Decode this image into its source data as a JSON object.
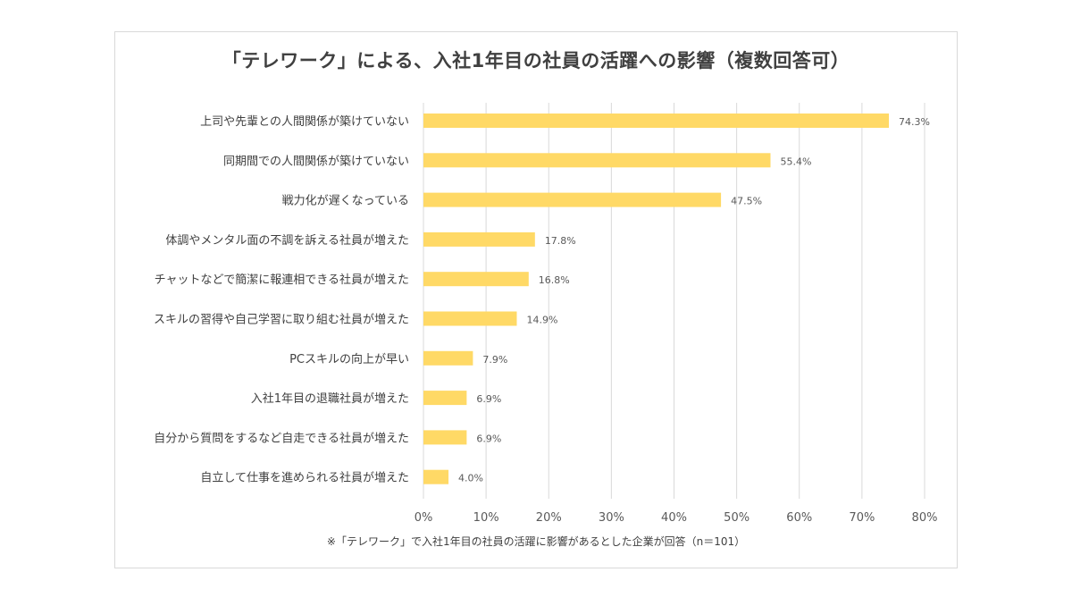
{
  "chart_data": {
    "type": "bar",
    "orientation": "horizontal",
    "title": "「テレワーク」による、入社1年目の社員の活躍への影響（複数回答可）",
    "categories": [
      "上司や先輩との人間関係が築けていない",
      "同期間での人間関係が築けていない",
      "戦力化が遅くなっている",
      "体調やメンタル面の不調を訴える社員が増えた",
      "チャットなどで簡潔に報連相できる社員が増えた",
      "スキルの習得や自己学習に取り組む社員が増えた",
      "PCスキルの向上が早い",
      "入社1年目の退職社員が増えた",
      "自分から質問をするなど自走できる社員が増えた",
      "自立して仕事を進められる社員が増えた"
    ],
    "values": [
      74.3,
      55.4,
      47.5,
      17.8,
      16.8,
      14.9,
      7.9,
      6.9,
      6.9,
      4.0
    ],
    "value_labels": [
      "74.3%",
      "55.4%",
      "47.5%",
      "17.8%",
      "16.8%",
      "14.9%",
      "7.9%",
      "6.9%",
      "6.9%",
      "4.0%"
    ],
    "xlim": [
      0,
      80
    ],
    "ticks": [
      0,
      10,
      20,
      30,
      40,
      50,
      60,
      70,
      80
    ],
    "tick_labels": [
      "0%",
      "10%",
      "20%",
      "30%",
      "40%",
      "50%",
      "60%",
      "70%",
      "80%"
    ],
    "grid": true,
    "bar_color": "#FFD966",
    "grid_color": "#d9d9d9"
  },
  "footnote": "※「テレワーク」で入社1年目の社員の活躍に影響があるとした企業が回答（n＝101）"
}
